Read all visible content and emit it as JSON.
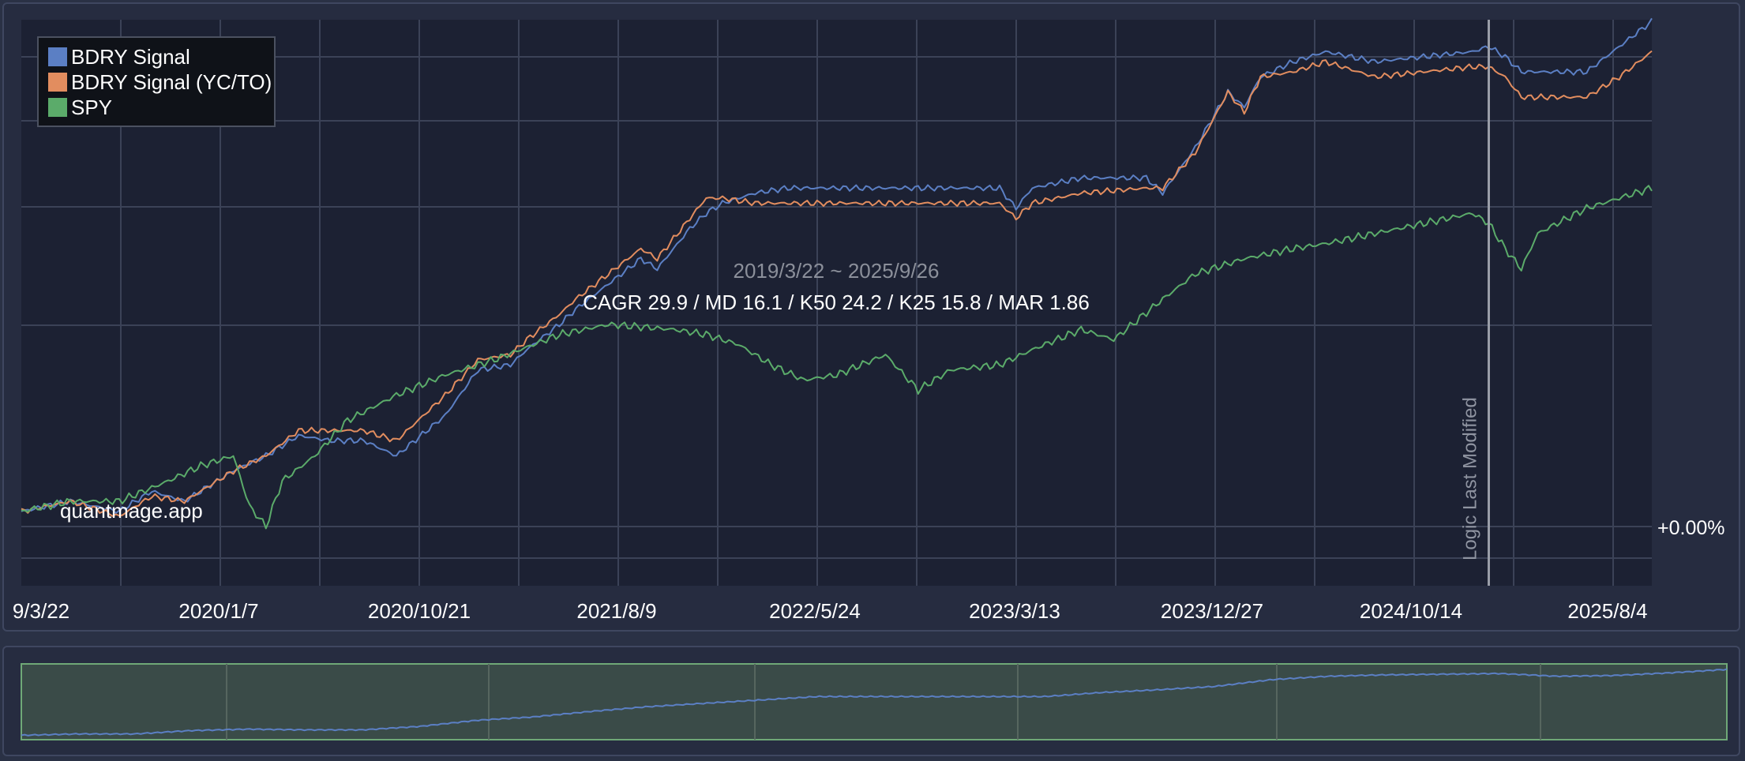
{
  "chart_data": {
    "type": "line",
    "x_tick_labels": [
      "9/3/22",
      "2020/1/7",
      "2020/10/21",
      "2021/8/9",
      "2022/5/24",
      "2023/3/13",
      "2023/12/27",
      "2024/10/14",
      "2025/8/4"
    ],
    "y_tick_labels": [
      "+0.00%"
    ],
    "date_range": "2019/3/22 ~ 2025/9/26",
    "stats": "CAGR 29.9 / MD 16.1 / K50 24.2 / K25 15.8 / MAR 1.86",
    "watermark": "quantmage.app",
    "vline_label": "Logic Last Modified",
    "vline_x": 0.9,
    "legend": "top-left",
    "grid": true,
    "series": [
      {
        "name": "BDRY Signal",
        "color": "#5b7fc4",
        "x": [
          0.0,
          0.03,
          0.06,
          0.08,
          0.1,
          0.13,
          0.15,
          0.17,
          0.19,
          0.2,
          0.21,
          0.23,
          0.26,
          0.28,
          0.3,
          0.31,
          0.33,
          0.34,
          0.36,
          0.38,
          0.39,
          0.41,
          0.42,
          0.43,
          0.45,
          0.47,
          0.5,
          0.55,
          0.6,
          0.61,
          0.62,
          0.65,
          0.69,
          0.7,
          0.72,
          0.74,
          0.75,
          0.76,
          0.78,
          0.8,
          0.83,
          0.86,
          0.89,
          0.9,
          0.91,
          0.92,
          0.94,
          0.96,
          0.98,
          1.0
        ],
        "y": [
          0.03,
          0.05,
          0.03,
          0.07,
          0.05,
          0.11,
          0.14,
          0.18,
          0.17,
          0.17,
          0.17,
          0.14,
          0.22,
          0.31,
          0.32,
          0.35,
          0.4,
          0.43,
          0.48,
          0.53,
          0.51,
          0.59,
          0.62,
          0.64,
          0.66,
          0.67,
          0.67,
          0.67,
          0.67,
          0.63,
          0.67,
          0.69,
          0.69,
          0.66,
          0.75,
          0.86,
          0.83,
          0.89,
          0.92,
          0.94,
          0.92,
          0.93,
          0.94,
          0.95,
          0.93,
          0.9,
          0.9,
          0.9,
          0.95,
          1.0
        ]
      },
      {
        "name": "BDRY Signal (YC/TO)",
        "color": "#e28d5f",
        "x": [
          0.0,
          0.03,
          0.06,
          0.08,
          0.1,
          0.13,
          0.15,
          0.17,
          0.19,
          0.2,
          0.21,
          0.23,
          0.26,
          0.28,
          0.3,
          0.31,
          0.33,
          0.34,
          0.36,
          0.38,
          0.39,
          0.41,
          0.42,
          0.43,
          0.45,
          0.47,
          0.5,
          0.55,
          0.6,
          0.61,
          0.62,
          0.65,
          0.69,
          0.7,
          0.72,
          0.74,
          0.75,
          0.76,
          0.78,
          0.8,
          0.83,
          0.86,
          0.89,
          0.9,
          0.91,
          0.92,
          0.94,
          0.96,
          0.98,
          1.0
        ],
        "y": [
          0.03,
          0.05,
          0.02,
          0.06,
          0.05,
          0.11,
          0.14,
          0.19,
          0.19,
          0.19,
          0.19,
          0.17,
          0.26,
          0.33,
          0.34,
          0.37,
          0.42,
          0.45,
          0.5,
          0.55,
          0.53,
          0.61,
          0.65,
          0.65,
          0.64,
          0.64,
          0.64,
          0.64,
          0.64,
          0.61,
          0.64,
          0.66,
          0.67,
          0.67,
          0.74,
          0.86,
          0.82,
          0.89,
          0.9,
          0.92,
          0.89,
          0.9,
          0.91,
          0.91,
          0.89,
          0.85,
          0.85,
          0.85,
          0.89,
          0.94
        ]
      },
      {
        "name": "SPY",
        "color": "#5bab6a",
        "x": [
          0.0,
          0.03,
          0.06,
          0.09,
          0.11,
          0.13,
          0.14,
          0.15,
          0.16,
          0.18,
          0.2,
          0.23,
          0.26,
          0.29,
          0.33,
          0.36,
          0.4,
          0.42,
          0.44,
          0.46,
          0.48,
          0.5,
          0.53,
          0.55,
          0.57,
          0.6,
          0.62,
          0.65,
          0.67,
          0.7,
          0.72,
          0.75,
          0.78,
          0.8,
          0.83,
          0.86,
          0.89,
          0.9,
          0.91,
          0.92,
          0.93,
          0.96,
          0.98,
          1.0
        ],
        "y": [
          0.03,
          0.05,
          0.05,
          0.09,
          0.12,
          0.14,
          0.04,
          0.0,
          0.09,
          0.14,
          0.21,
          0.26,
          0.3,
          0.33,
          0.38,
          0.4,
          0.39,
          0.38,
          0.36,
          0.32,
          0.29,
          0.3,
          0.34,
          0.27,
          0.31,
          0.32,
          0.35,
          0.39,
          0.37,
          0.45,
          0.5,
          0.53,
          0.55,
          0.56,
          0.58,
          0.6,
          0.62,
          0.6,
          0.55,
          0.51,
          0.58,
          0.63,
          0.65,
          0.67
        ]
      }
    ]
  },
  "navigator": {
    "series_y": [
      0.03,
      0.05,
      0.05,
      0.1,
      0.12,
      0.11,
      0.11,
      0.16,
      0.25,
      0.3,
      0.38,
      0.45,
      0.5,
      0.55,
      0.6,
      0.6,
      0.6,
      0.6,
      0.6,
      0.66,
      0.7,
      0.75,
      0.85,
      0.9,
      0.92,
      0.93,
      0.94,
      0.9,
      0.91,
      0.95,
      1.0
    ],
    "line_color": "#5b7fc4",
    "fill_color": "#3a4b48",
    "border_color": "#6fa877"
  }
}
